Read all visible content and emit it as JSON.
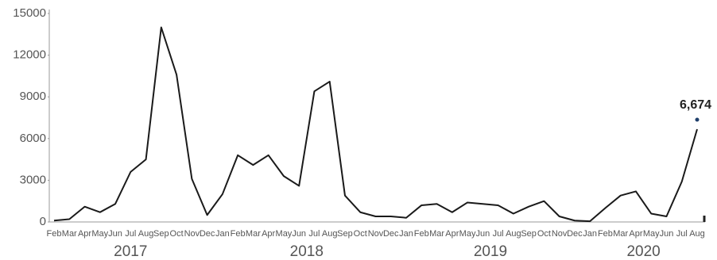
{
  "chart_data": {
    "type": "line",
    "categories": [
      "Feb",
      "Mar",
      "Apr",
      "May",
      "Jun",
      "Jul",
      "Aug",
      "Sep",
      "Oct",
      "Nov",
      "Dec",
      "Jan",
      "Feb",
      "Mar",
      "Apr",
      "May",
      "Jun",
      "Jul",
      "Aug",
      "Sep",
      "Oct",
      "Nov",
      "Dec",
      "Jan",
      "Feb",
      "Mar",
      "Apr",
      "May",
      "Jun",
      "Jul",
      "Aug",
      "Sep",
      "Oct",
      "Nov",
      "Dec",
      "Jan",
      "Feb",
      "Mar",
      "Apr",
      "May",
      "Jun",
      "Jul",
      "Aug"
    ],
    "years": [
      "2017",
      "2018",
      "2019",
      "2020"
    ],
    "values": [
      100,
      200,
      1100,
      700,
      1300,
      3600,
      4500,
      14000,
      10600,
      3100,
      500,
      2000,
      4800,
      4100,
      4800,
      3300,
      2600,
      9400,
      10100,
      1900,
      700,
      400,
      400,
      300,
      1200,
      1300,
      700,
      1400,
      1300,
      1200,
      600,
      1100,
      1500,
      400,
      100,
      50,
      1000,
      1900,
      2200,
      600,
      400,
      2900,
      6674
    ],
    "value_labels": [
      null,
      null,
      null,
      null,
      null,
      null,
      null,
      null,
      null,
      null,
      null,
      null,
      null,
      null,
      null,
      null,
      null,
      null,
      null,
      null,
      null,
      null,
      null,
      null,
      null,
      null,
      null,
      null,
      null,
      null,
      null,
      null,
      null,
      null,
      null,
      null,
      null,
      null,
      null,
      null,
      null,
      null,
      "6,674"
    ],
    "color": "#1a1a1a",
    "marker_color": "#1f3f6b",
    "ylim": [
      0,
      15000
    ],
    "yticks": [
      0,
      3000,
      6000,
      9000,
      12000,
      15000
    ],
    "grid": false
  }
}
